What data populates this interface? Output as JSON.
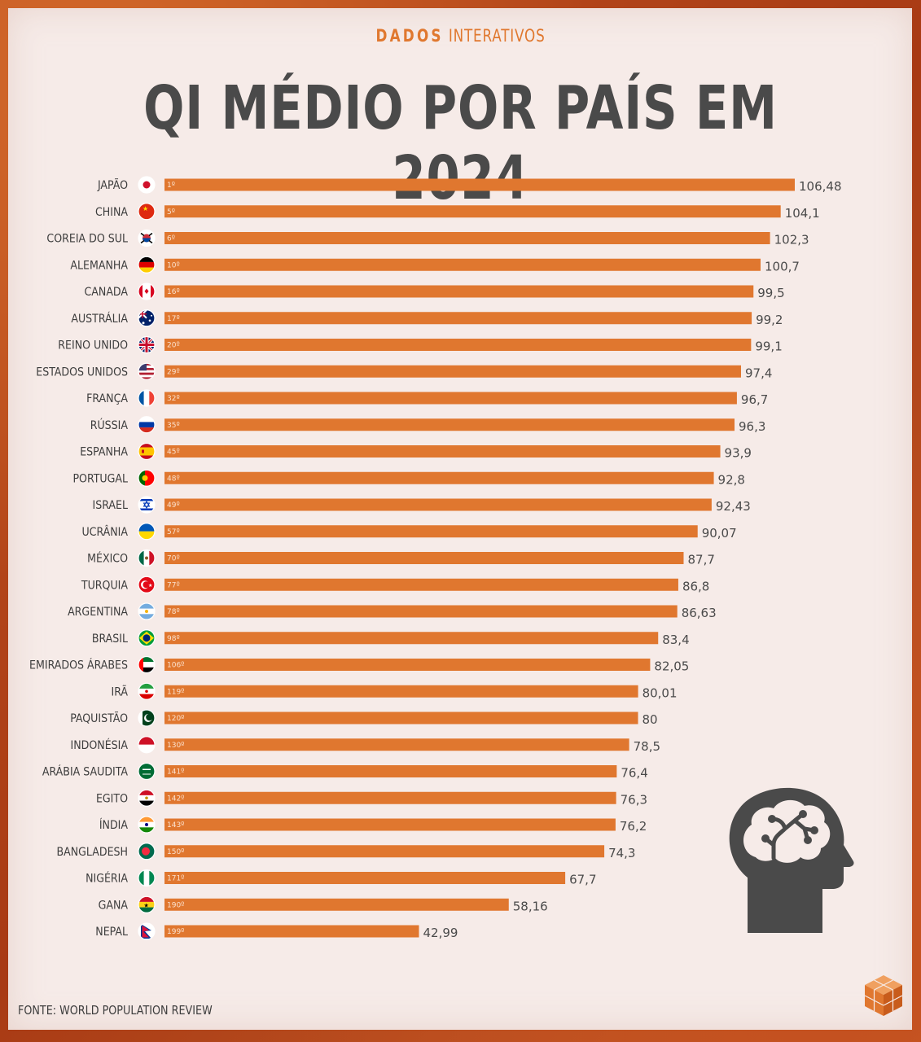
{
  "header": {
    "brand_strong": "DADOS",
    "brand_rest": " INTERATIVOS"
  },
  "chart_data": {
    "type": "bar",
    "title": "QI MÉDIO POR PAÍS EM 2024",
    "orientation": "horizontal",
    "categories": [
      "JAPÃO",
      "CHINA",
      "COREIA DO SUL",
      "ALEMANHA",
      "CANADA",
      "AUSTRÁLIA",
      "REINO UNIDO",
      "ESTADOS UNIDOS",
      "FRANÇA",
      "RÚSSIA",
      "ESPANHA",
      "PORTUGAL",
      "ISRAEL",
      "UCRÂNIA",
      "MÉXICO",
      "TURQUIA",
      "ARGENTINA",
      "BRASIL",
      "EMIRADOS ÁRABES",
      "IRÃ",
      "PAQUISTÃO",
      "INDONÉSIA",
      "ARÁBIA SAUDITA",
      "EGITO",
      "ÍNDIA",
      "BANGLADESH",
      "NIGÉRIA",
      "GANA",
      "NEPAL"
    ],
    "values": [
      106.48,
      104.1,
      102.3,
      100.7,
      99.5,
      99.2,
      99.1,
      97.4,
      96.7,
      96.3,
      93.9,
      92.8,
      92.43,
      90.07,
      87.7,
      86.8,
      86.63,
      83.4,
      82.05,
      80.01,
      80,
      78.5,
      76.4,
      76.3,
      76.2,
      74.3,
      67.7,
      58.16,
      42.99
    ],
    "value_labels": [
      "106,48",
      "104,1",
      "102,3",
      "100,7",
      "99,5",
      "99,2",
      "99,1",
      "97,4",
      "96,7",
      "96,3",
      "93,9",
      "92,8",
      "92,43",
      "90,07",
      "87,7",
      "86,8",
      "86,63",
      "83,4",
      "82,05",
      "80,01",
      "80",
      "78,5",
      "76,4",
      "76,3",
      "76,2",
      "74,3",
      "67,7",
      "58,16",
      "42,99"
    ],
    "ranks": [
      "1º",
      "5º",
      "6º",
      "10º",
      "16º",
      "17º",
      "20º",
      "29º",
      "32º",
      "35º",
      "45º",
      "48º",
      "49º",
      "57º",
      "70º",
      "77º",
      "78º",
      "98º",
      "106º",
      "119º",
      "120º",
      "130º",
      "141º",
      "142º",
      "143º",
      "150º",
      "171º",
      "190º",
      "199º"
    ],
    "flags": [
      "japan",
      "china",
      "south-korea",
      "germany",
      "canada",
      "australia",
      "uk",
      "usa",
      "france",
      "russia",
      "spain",
      "portugal",
      "israel",
      "ukraine",
      "mexico",
      "turkey",
      "argentina",
      "brazil",
      "uae",
      "iran",
      "pakistan",
      "indonesia",
      "saudi-arabia",
      "egypt",
      "india",
      "bangladesh",
      "nigeria",
      "ghana",
      "nepal"
    ],
    "bar_color": "#e0772f"
  },
  "footer": {
    "source": "FONTE: WORLD POPULATION REVIEW"
  },
  "icons": {
    "illustration": "brain-head-icon",
    "logo": "cube-logo-icon"
  }
}
